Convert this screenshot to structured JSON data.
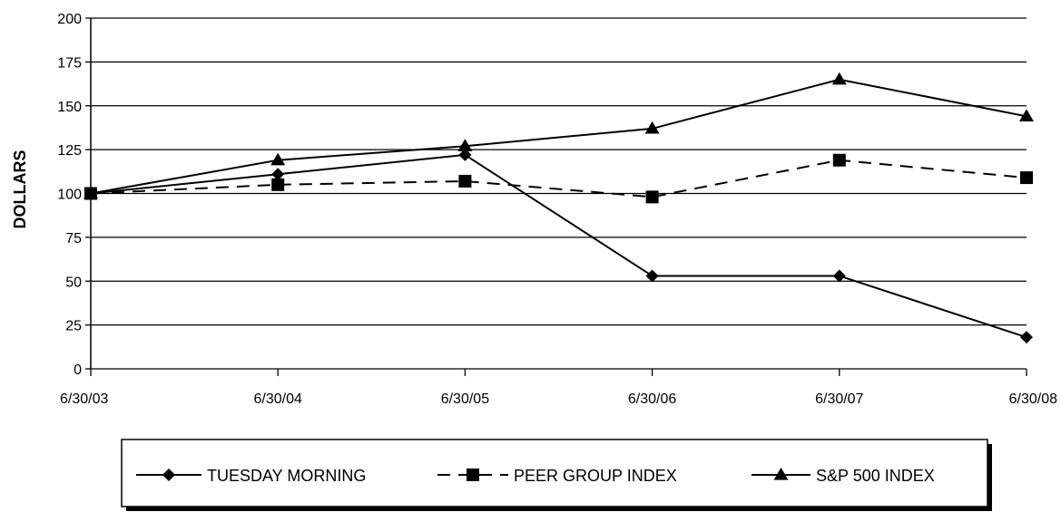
{
  "chart_data": {
    "type": "line",
    "ylabel": "DOLLARS",
    "xlabel": "",
    "categories": [
      "6/30/03",
      "6/30/04",
      "6/30/05",
      "6/30/06",
      "6/30/07",
      "6/30/08"
    ],
    "ylim": [
      0,
      200
    ],
    "yticks": [
      0,
      25,
      50,
      75,
      100,
      125,
      150,
      175,
      200
    ],
    "grid": true,
    "legend_position": "bottom",
    "series": [
      {
        "name": "TUESDAY MORNING",
        "marker": "diamond",
        "dash": "solid",
        "values": [
          100,
          111,
          122,
          53,
          53,
          18
        ]
      },
      {
        "name": "PEER GROUP INDEX",
        "marker": "square",
        "dash": "dashed",
        "values": [
          100,
          105,
          107,
          98,
          119,
          109
        ]
      },
      {
        "name": "S&P 500 INDEX",
        "marker": "triangle",
        "dash": "solid",
        "values": [
          100,
          119,
          127,
          137,
          165,
          144
        ]
      }
    ]
  }
}
